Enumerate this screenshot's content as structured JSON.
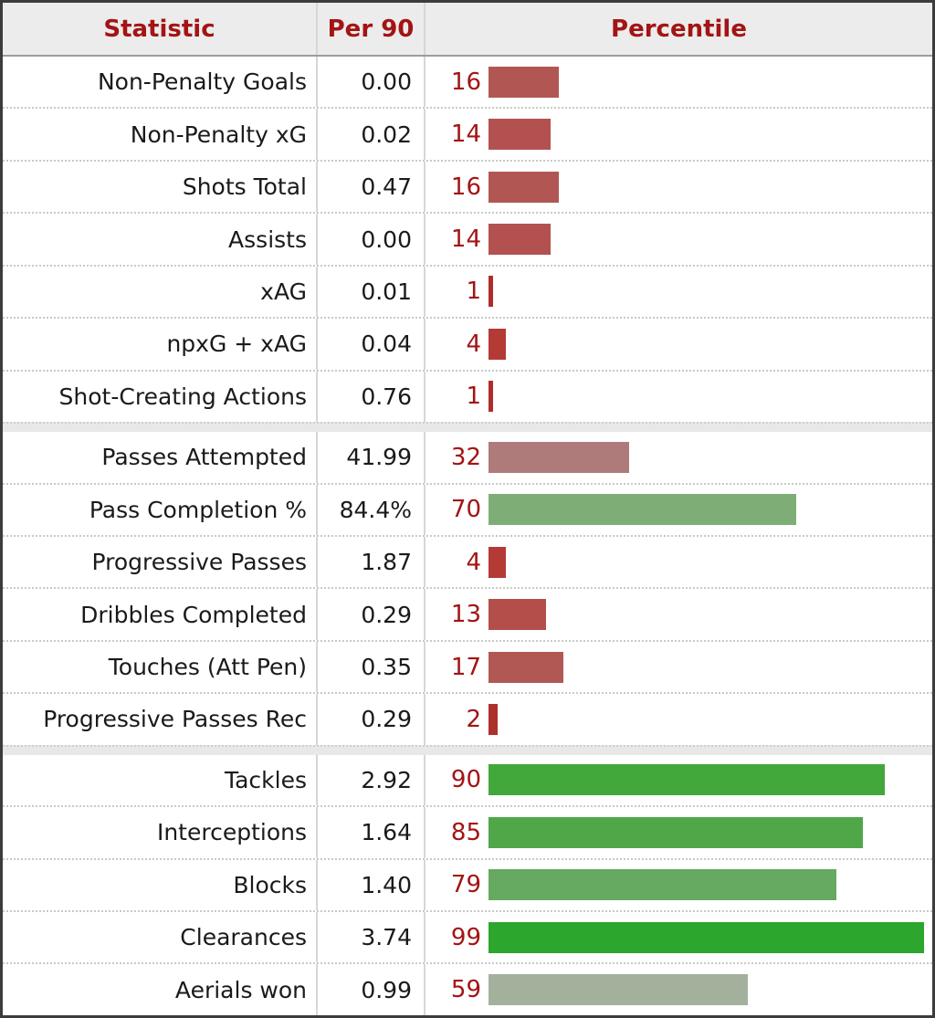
{
  "chart_data": {
    "type": "bar",
    "orientation": "horizontal",
    "value_range": [
      0,
      100
    ],
    "column_headers": [
      "Statistic",
      "Per 90",
      "Percentile"
    ],
    "colors": {
      "header_background": "#ececec",
      "header_text": "#a31414",
      "percentile_number_text": "#a31414",
      "statistic_text": "#1a1a1a",
      "row_background": "#ffffff",
      "section_separator_background": "#e8e8e8",
      "dotted_row_border": "#c9c9c9",
      "column_border": "#d6d6d6",
      "outer_border": "#3c3c3c"
    },
    "sections": [
      {
        "rows": [
          {
            "statistic": "Non-Penalty Goals",
            "per90": "0.00",
            "percentile": 16,
            "bar_color": "#b15653"
          },
          {
            "statistic": "Non-Penalty xG",
            "per90": "0.02",
            "percentile": 14,
            "bar_color": "#b25150"
          },
          {
            "statistic": "Shots Total",
            "per90": "0.47",
            "percentile": 16,
            "bar_color": "#b15653"
          },
          {
            "statistic": "Assists",
            "per90": "0.00",
            "percentile": 14,
            "bar_color": "#b25150"
          },
          {
            "statistic": "xAG",
            "per90": "0.01",
            "percentile": 1,
            "bar_color": "#ae2d2a"
          },
          {
            "statistic": "npxG + xAG",
            "per90": "0.04",
            "percentile": 4,
            "bar_color": "#b43a35"
          },
          {
            "statistic": "Shot-Creating Actions",
            "per90": "0.76",
            "percentile": 1,
            "bar_color": "#ae2d2a"
          }
        ]
      },
      {
        "rows": [
          {
            "statistic": "Passes Attempted",
            "per90": "41.99",
            "percentile": 32,
            "bar_color": "#af7b7a"
          },
          {
            "statistic": "Pass Completion %",
            "per90": "84.4%",
            "percentile": 70,
            "bar_color": "#7eae76"
          },
          {
            "statistic": "Progressive Passes",
            "per90": "1.87",
            "percentile": 4,
            "bar_color": "#b43a35"
          },
          {
            "statistic": "Dribbles Completed",
            "per90": "0.29",
            "percentile": 13,
            "bar_color": "#b34e4b"
          },
          {
            "statistic": "Touches (Att Pen)",
            "per90": "0.35",
            "percentile": 17,
            "bar_color": "#b15854"
          },
          {
            "statistic": "Progressive Passes Rec",
            "per90": "0.29",
            "percentile": 2,
            "bar_color": "#ad302c"
          }
        ]
      },
      {
        "rows": [
          {
            "statistic": "Tackles",
            "per90": "2.92",
            "percentile": 90,
            "bar_color": "#42a83c"
          },
          {
            "statistic": "Interceptions",
            "per90": "1.64",
            "percentile": 85,
            "bar_color": "#4fa749"
          },
          {
            "statistic": "Blocks",
            "per90": "1.40",
            "percentile": 79,
            "bar_color": "#66a960"
          },
          {
            "statistic": "Clearances",
            "per90": "3.74",
            "percentile": 99,
            "bar_color": "#2ca62c"
          },
          {
            "statistic": "Aerials won",
            "per90": "0.99",
            "percentile": 59,
            "bar_color": "#a3b19c"
          }
        ]
      }
    ]
  }
}
